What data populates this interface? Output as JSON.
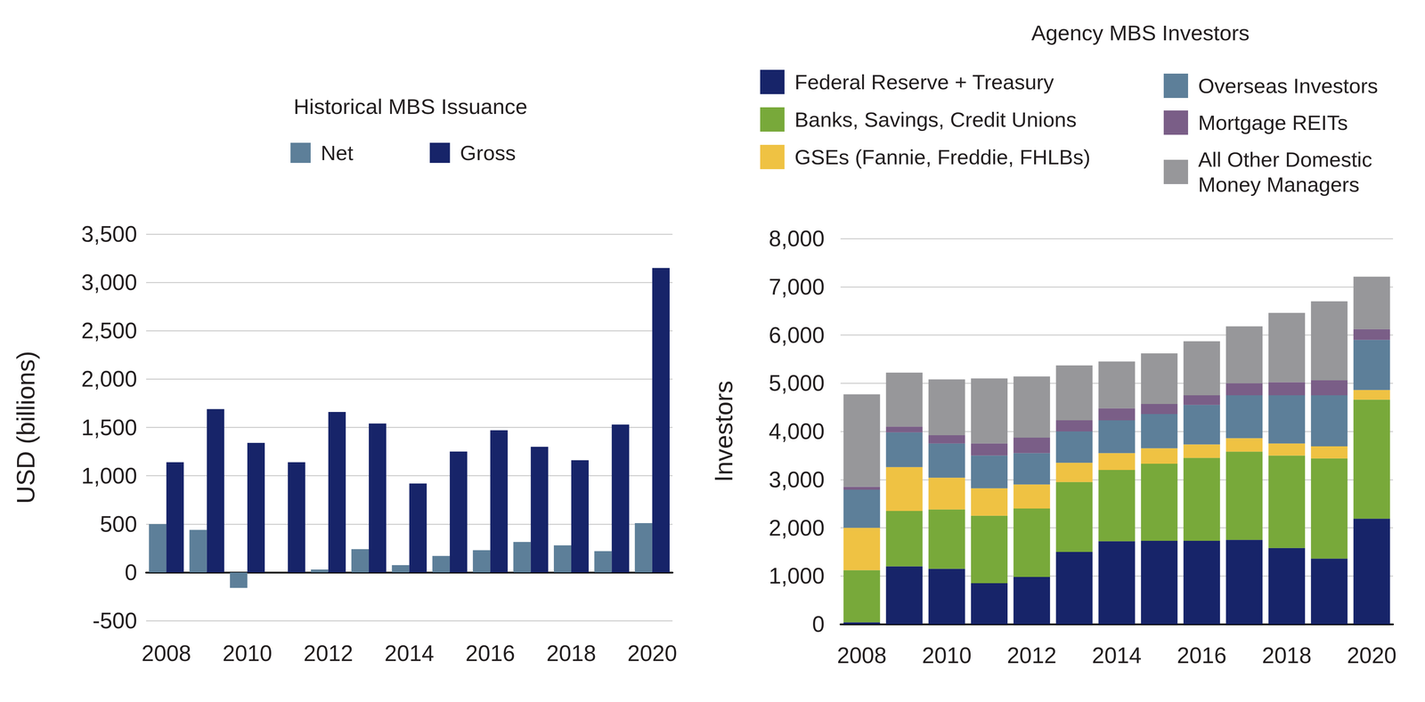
{
  "chart_data": [
    {
      "type": "bar",
      "title": "Historical MBS Issuance",
      "categories": [
        "2008",
        null,
        "2010",
        null,
        "2012",
        null,
        "2014",
        null,
        "2016",
        null,
        "2018",
        null,
        "2020"
      ],
      "series": [
        {
          "name": "Net",
          "color": "#5d7f99",
          "values": [
            500,
            440,
            -160,
            0,
            30,
            240,
            75,
            170,
            230,
            315,
            280,
            220,
            510
          ]
        },
        {
          "name": "Gross",
          "color": "#172469",
          "values": [
            1140,
            1690,
            1340,
            1140,
            1660,
            1540,
            920,
            1250,
            1470,
            1300,
            1160,
            1530,
            3150
          ]
        }
      ],
      "ylabel": "USD (billions)",
      "ylim": [
        -500,
        3500
      ],
      "yticks": [
        -500,
        0,
        500,
        {
          "value": 1000,
          "label": "1,000"
        },
        {
          "value": 1500,
          "label": "1,500"
        },
        {
          "value": 2000,
          "label": "2,000"
        },
        {
          "value": 2500,
          "label": "2,500"
        },
        {
          "value": 3000,
          "label": "3,000"
        },
        {
          "value": 3500,
          "label": "3,500"
        }
      ],
      "grid": true,
      "legend": "top"
    },
    {
      "type": "bar",
      "title": "Agency MBS Investors",
      "stacked": true,
      "categories": [
        "2008",
        null,
        "2010",
        null,
        "2012",
        null,
        "2014",
        null,
        "2016",
        null,
        "2018",
        null,
        "2020"
      ],
      "series": [
        {
          "name": "Federal Reserve + Treasury",
          "color": "#172469",
          "values": [
            40,
            1200,
            1150,
            850,
            980,
            1500,
            1720,
            1730,
            1730,
            1750,
            1580,
            1360,
            2190
          ]
        },
        {
          "name": "Banks, Savings, Credit Unions",
          "color": "#78a93a",
          "values": [
            1080,
            1150,
            1230,
            1400,
            1420,
            1450,
            1480,
            1600,
            1720,
            1830,
            1920,
            2080,
            2470
          ]
        },
        {
          "name": "GSEs (Fannie, Freddie, FHLBs)",
          "color": "#efc243",
          "values": [
            880,
            910,
            660,
            570,
            500,
            400,
            350,
            320,
            280,
            280,
            250,
            250,
            200
          ]
        },
        {
          "name": "Overseas Investors",
          "color": "#5d7f99",
          "values": [
            790,
            720,
            710,
            680,
            650,
            650,
            680,
            710,
            820,
            890,
            1000,
            1060,
            1040
          ]
        },
        {
          "name": "Mortgage REITs",
          "color": "#7a5e87",
          "values": [
            60,
            120,
            170,
            250,
            320,
            230,
            250,
            210,
            200,
            250,
            270,
            310,
            220
          ]
        },
        {
          "name": "All Other Domestic Money Managers",
          "color": "#97979a",
          "values": [
            1920,
            1120,
            1160,
            1350,
            1270,
            1140,
            970,
            1050,
            1120,
            1180,
            1440,
            1640,
            1090
          ]
        }
      ],
      "ylabel": "Investors",
      "ylim": [
        0,
        8000
      ],
      "yticks": [
        0,
        {
          "value": 1000,
          "label": "1,000"
        },
        {
          "value": 2000,
          "label": "2,000"
        },
        {
          "value": 3000,
          "label": "3,000"
        },
        {
          "value": 4000,
          "label": "4,000"
        },
        {
          "value": 5000,
          "label": "5,000"
        },
        {
          "value": 6000,
          "label": "6,000"
        },
        {
          "value": 7000,
          "label": "7,000"
        },
        {
          "value": 8000,
          "label": "8,000"
        }
      ],
      "grid": true,
      "legend": "top"
    }
  ]
}
